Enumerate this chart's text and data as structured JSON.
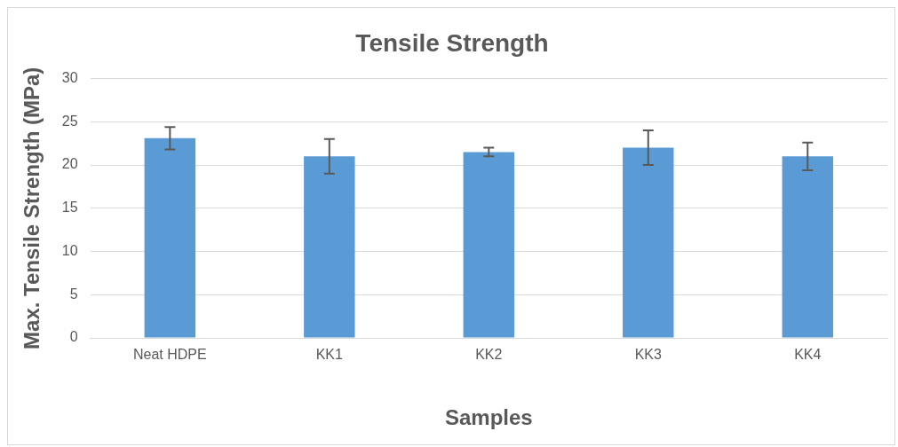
{
  "chart_data": {
    "type": "bar",
    "title": "Tensile Strength",
    "xlabel": "Samples",
    "ylabel": "Max. Tensile Strength (MPa)",
    "categories": [
      "Neat HDPE",
      "KK1",
      "KK2",
      "KK3",
      "KK4"
    ],
    "values": [
      23.1,
      21.0,
      21.5,
      22.0,
      21.0
    ],
    "errors": [
      1.3,
      2.0,
      0.5,
      2.0,
      1.6
    ],
    "color": "#5b9bd5",
    "ylim": [
      0,
      30
    ],
    "yticks": [
      0,
      5,
      10,
      15,
      20,
      25,
      30
    ],
    "grid": "y",
    "legend": false
  }
}
